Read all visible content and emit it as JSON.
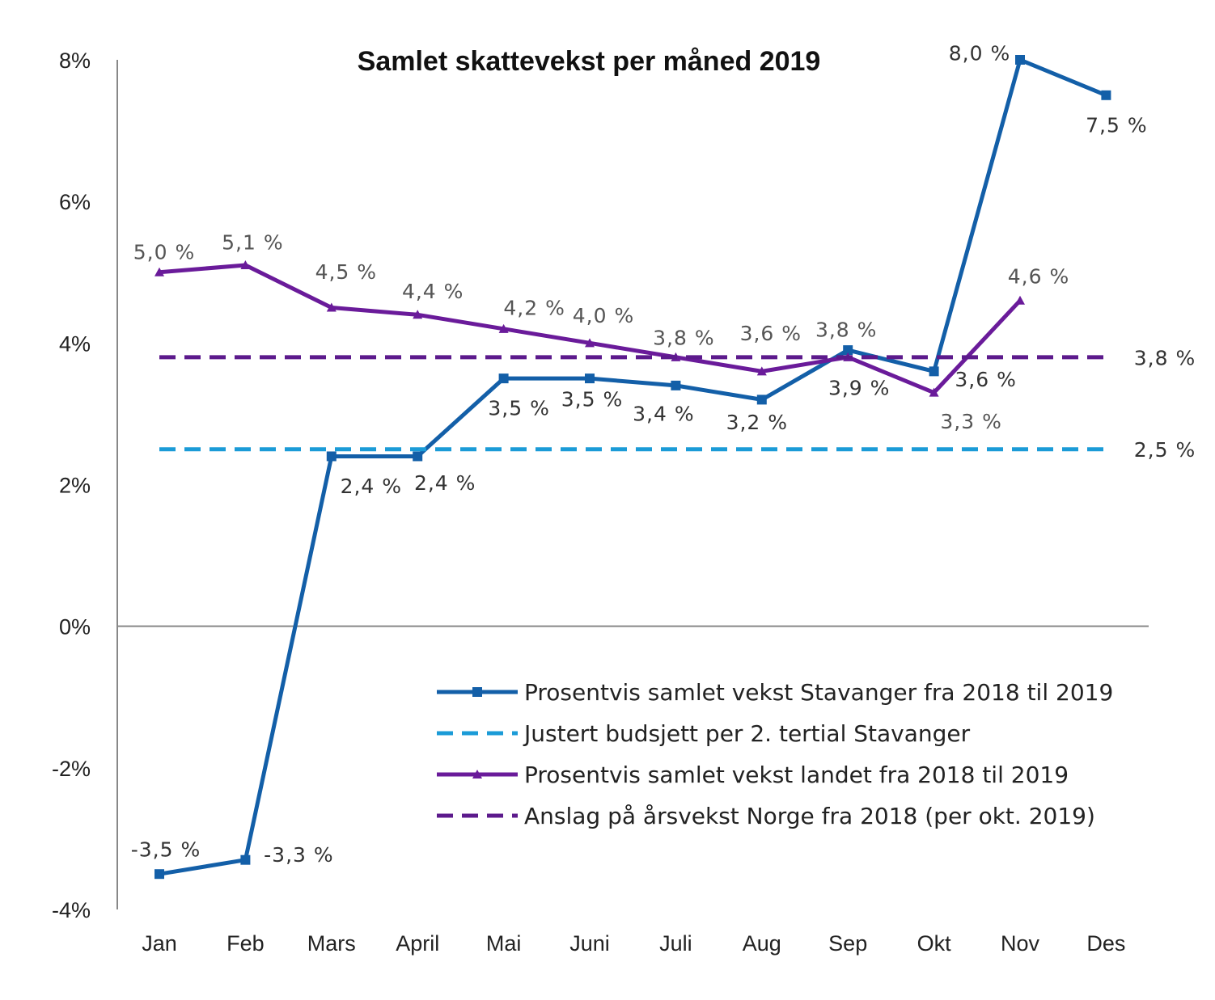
{
  "chart_data": {
    "type": "line",
    "title": "Samlet skattevekst per måned 2019",
    "xlabel": "",
    "ylabel": "",
    "categories": [
      "Jan",
      "Feb",
      "Mars",
      "April",
      "Mai",
      "Juni",
      "Juli",
      "Aug",
      "Sep",
      "Okt",
      "Nov",
      "Des"
    ],
    "ylim": [
      -4,
      8
    ],
    "yticks": [
      8,
      6,
      4,
      2,
      0,
      -2,
      -4
    ],
    "ytick_labels": [
      "8%",
      "6%",
      "4%",
      "2%",
      "0%",
      "-2%",
      "-4%"
    ],
    "grid": false,
    "legend_position": "bottom-right",
    "series": [
      {
        "name": "Prosentvis samlet vekst Stavanger fra 2018 til 2019",
        "style": "solid",
        "color": "#135fa8",
        "values": [
          -3.5,
          -3.3,
          2.4,
          2.4,
          3.5,
          3.5,
          3.4,
          3.2,
          3.9,
          3.6,
          8.0,
          7.5
        ],
        "labels": [
          "-3,5 %",
          "-3,3 %",
          "2,4 %",
          "2,4 %",
          "3,5 %",
          "3,5 %",
          "3,4 %",
          "3,2 %",
          "3,9 %",
          "3,6 %",
          "8,0 %",
          "7,5 %"
        ]
      },
      {
        "name": "Justert budsjett per 2. tertial Stavanger",
        "style": "dashed",
        "color": "#1b9bd7",
        "constant": 2.5,
        "label": "2,5 %"
      },
      {
        "name": "Prosentvis samlet vekst landet fra 2018 til 2019",
        "style": "solid",
        "color": "#6a1b9a",
        "values": [
          5.0,
          5.1,
          4.5,
          4.4,
          4.2,
          4.0,
          3.8,
          3.6,
          3.8,
          3.3,
          4.6,
          null
        ],
        "labels": [
          "5,0 %",
          "5,1 %",
          "4,5 %",
          "4,4 %",
          "4,2 %",
          "4,0 %",
          "3,8 %",
          "3,6 %",
          "3,8 %",
          "3,3 %",
          "4,6 %",
          null
        ]
      },
      {
        "name": "Anslag på årsvekst Norge fra 2018 (per okt. 2019)",
        "style": "dashed",
        "color": "#5c1a8c",
        "constant": 3.8,
        "label": "3,8 %"
      }
    ]
  }
}
